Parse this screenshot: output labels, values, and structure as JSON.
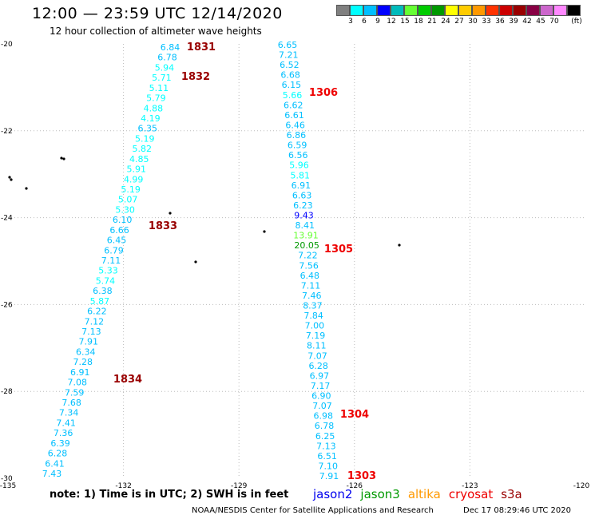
{
  "header": {
    "title": "12:00 — 23:59 UTC 12/14/2020",
    "subtitle": "12 hour collection of altimeter wave heights"
  },
  "scale": {
    "unit": "(ft)",
    "colors": [
      "#808080",
      "#00ffff",
      "#00bfff",
      "#0000ff",
      "#00bbbb",
      "#66ff33",
      "#00cc00",
      "#009900",
      "#ffff00",
      "#ffcc00",
      "#ff9900",
      "#ff3300",
      "#cc0000",
      "#990000",
      "#880044",
      "#cc66cc",
      "#ff88ff",
      "#000000"
    ],
    "labels": [
      "3",
      "6",
      "9",
      "12",
      "15",
      "18",
      "21",
      "24",
      "27",
      "30",
      "33",
      "36",
      "39",
      "42",
      "45",
      "70"
    ]
  },
  "axes": {
    "lon_labels": [
      "-135",
      "-132",
      "-129",
      "-126",
      "-123",
      "-120"
    ],
    "lat_labels": [
      "-20",
      "-22",
      "-24",
      "-26",
      "-28",
      "-30"
    ]
  },
  "tracks": [
    {
      "id": "left",
      "values": [
        {
          "v": "6.84",
          "c": "#00bfff"
        },
        {
          "v": "6.78",
          "c": "#00bfff"
        },
        {
          "v": "5.94",
          "c": "#00ffff"
        },
        {
          "v": "5.71",
          "c": "#00ffff"
        },
        {
          "v": "5.11",
          "c": "#00ffff"
        },
        {
          "v": "5.79",
          "c": "#00ffff"
        },
        {
          "v": "4.88",
          "c": "#00ffff"
        },
        {
          "v": "4.19",
          "c": "#00ffff"
        },
        {
          "v": "6.35",
          "c": "#00bfff"
        },
        {
          "v": "5.19",
          "c": "#00ffff"
        },
        {
          "v": "5.82",
          "c": "#00ffff"
        },
        {
          "v": "4.85",
          "c": "#00ffff"
        },
        {
          "v": "5.91",
          "c": "#00ffff"
        },
        {
          "v": "4.99",
          "c": "#00ffff"
        },
        {
          "v": "5.19",
          "c": "#00ffff"
        },
        {
          "v": "5.07",
          "c": "#00ffff"
        },
        {
          "v": "5.30",
          "c": "#00ffff"
        },
        {
          "v": "6.10",
          "c": "#00bfff"
        },
        {
          "v": "6.66",
          "c": "#00bfff"
        },
        {
          "v": "6.45",
          "c": "#00bfff"
        },
        {
          "v": "6.79",
          "c": "#00bfff"
        },
        {
          "v": "7.11",
          "c": "#00bfff"
        },
        {
          "v": "5.33",
          "c": "#00ffff"
        },
        {
          "v": "5.74",
          "c": "#00ffff"
        },
        {
          "v": "6.38",
          "c": "#00bfff"
        },
        {
          "v": "5.87",
          "c": "#00ffff"
        },
        {
          "v": "6.22",
          "c": "#00bfff"
        },
        {
          "v": "7.12",
          "c": "#00bfff"
        },
        {
          "v": "7.13",
          "c": "#00bfff"
        },
        {
          "v": "7.91",
          "c": "#00bfff"
        },
        {
          "v": "6.34",
          "c": "#00bfff"
        },
        {
          "v": "7.28",
          "c": "#00bfff"
        },
        {
          "v": "6.91",
          "c": "#00bfff"
        },
        {
          "v": "7.08",
          "c": "#00bfff"
        },
        {
          "v": "7.59",
          "c": "#00bfff"
        },
        {
          "v": "7.68",
          "c": "#00bfff"
        },
        {
          "v": "7.34",
          "c": "#00bfff"
        },
        {
          "v": "7.41",
          "c": "#00bfff"
        },
        {
          "v": "7.36",
          "c": "#00bfff"
        },
        {
          "v": "6.39",
          "c": "#00bfff"
        },
        {
          "v": "6.28",
          "c": "#00bfff"
        },
        {
          "v": "6.41",
          "c": "#00bfff"
        },
        {
          "v": "7.43",
          "c": "#00bfff"
        }
      ]
    },
    {
      "id": "right",
      "values": [
        {
          "v": "6.65",
          "c": "#00bfff"
        },
        {
          "v": "7.21",
          "c": "#00bfff"
        },
        {
          "v": "6.52",
          "c": "#00bfff"
        },
        {
          "v": "6.68",
          "c": "#00bfff"
        },
        {
          "v": "6.15",
          "c": "#00bfff"
        },
        {
          "v": "5.66",
          "c": "#00ffff"
        },
        {
          "v": "6.62",
          "c": "#00bfff"
        },
        {
          "v": "6.61",
          "c": "#00bfff"
        },
        {
          "v": "6.46",
          "c": "#00bfff"
        },
        {
          "v": "6.86",
          "c": "#00bfff"
        },
        {
          "v": "6.59",
          "c": "#00bfff"
        },
        {
          "v": "6.56",
          "c": "#00bfff"
        },
        {
          "v": "5.96",
          "c": "#00ffff"
        },
        {
          "v": "5.81",
          "c": "#00ffff"
        },
        {
          "v": "6.91",
          "c": "#00bfff"
        },
        {
          "v": "6.63",
          "c": "#00bfff"
        },
        {
          "v": "6.23",
          "c": "#00bfff"
        },
        {
          "v": "9.43",
          "c": "#0000ff"
        },
        {
          "v": "8.41",
          "c": "#00bfff"
        },
        {
          "v": "13.91",
          "c": "#66ff33"
        },
        {
          "v": "20.05",
          "c": "#009900"
        },
        {
          "v": "7.22",
          "c": "#00bfff"
        },
        {
          "v": "7.56",
          "c": "#00bfff"
        },
        {
          "v": "6.48",
          "c": "#00bfff"
        },
        {
          "v": "7.11",
          "c": "#00bfff"
        },
        {
          "v": "7.46",
          "c": "#00bfff"
        },
        {
          "v": "8.37",
          "c": "#00bfff"
        },
        {
          "v": "7.84",
          "c": "#00bfff"
        },
        {
          "v": "7.00",
          "c": "#00bfff"
        },
        {
          "v": "7.19",
          "c": "#00bfff"
        },
        {
          "v": "8.11",
          "c": "#00bfff"
        },
        {
          "v": "7.07",
          "c": "#00bfff"
        },
        {
          "v": "6.28",
          "c": "#00bfff"
        },
        {
          "v": "6.97",
          "c": "#00bfff"
        },
        {
          "v": "7.17",
          "c": "#00bfff"
        },
        {
          "v": "6.90",
          "c": "#00bfff"
        },
        {
          "v": "7.07",
          "c": "#00bfff"
        },
        {
          "v": "6.98",
          "c": "#00bfff"
        },
        {
          "v": "6.78",
          "c": "#00bfff"
        },
        {
          "v": "6.25",
          "c": "#00bfff"
        },
        {
          "v": "7.13",
          "c": "#00bfff"
        },
        {
          "v": "6.51",
          "c": "#00bfff"
        },
        {
          "v": "7.10",
          "c": "#00bfff"
        },
        {
          "v": "7.91",
          "c": "#00bfff"
        }
      ]
    }
  ],
  "time_labels": [
    {
      "t": "1831",
      "c": "#990000"
    },
    {
      "t": "1832",
      "c": "#990000"
    },
    {
      "t": "1833",
      "c": "#990000"
    },
    {
      "t": "1834",
      "c": "#990000"
    },
    {
      "t": "1306",
      "c": "#ee0000"
    },
    {
      "t": "1305",
      "c": "#ee0000"
    },
    {
      "t": "1304",
      "c": "#ee0000"
    },
    {
      "t": "1303",
      "c": "#ee0000"
    }
  ],
  "note": "note:  1) Time is in UTC;  2) SWH is in feet",
  "legend": [
    {
      "name": "jason2",
      "color": "#0000ee"
    },
    {
      "name": "jason3",
      "color": "#009900"
    },
    {
      "name": "altika",
      "color": "#ff9900"
    },
    {
      "name": "cryosat",
      "color": "#ee0000"
    },
    {
      "name": "s3a",
      "color": "#990000"
    }
  ],
  "credit": "NOAA/NESDIS Center for Satellite Applications and Research",
  "timestamp": "Dec 17 08:29:46 UTC 2020"
}
